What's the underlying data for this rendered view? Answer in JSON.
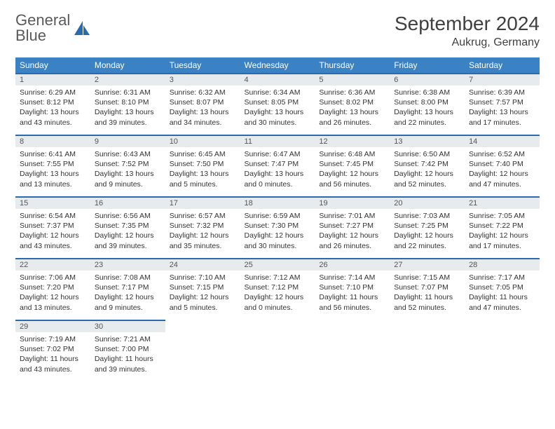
{
  "brand": {
    "line1": "General",
    "line2": "Blue"
  },
  "title": "September 2024",
  "location": "Aukrug, Germany",
  "colors": {
    "header_bg": "#3b82c4",
    "accent": "#2a6bb0",
    "daynum_bg": "#e8ebee",
    "text": "#333333",
    "page_bg": "#ffffff"
  },
  "day_headers": [
    "Sunday",
    "Monday",
    "Tuesday",
    "Wednesday",
    "Thursday",
    "Friday",
    "Saturday"
  ],
  "weeks": [
    [
      {
        "n": "1",
        "sr": "6:29 AM",
        "ss": "8:12 PM",
        "dh": "13",
        "dm": "43"
      },
      {
        "n": "2",
        "sr": "6:31 AM",
        "ss": "8:10 PM",
        "dh": "13",
        "dm": "39"
      },
      {
        "n": "3",
        "sr": "6:32 AM",
        "ss": "8:07 PM",
        "dh": "13",
        "dm": "34"
      },
      {
        "n": "4",
        "sr": "6:34 AM",
        "ss": "8:05 PM",
        "dh": "13",
        "dm": "30"
      },
      {
        "n": "5",
        "sr": "6:36 AM",
        "ss": "8:02 PM",
        "dh": "13",
        "dm": "26"
      },
      {
        "n": "6",
        "sr": "6:38 AM",
        "ss": "8:00 PM",
        "dh": "13",
        "dm": "22"
      },
      {
        "n": "7",
        "sr": "6:39 AM",
        "ss": "7:57 PM",
        "dh": "13",
        "dm": "17"
      }
    ],
    [
      {
        "n": "8",
        "sr": "6:41 AM",
        "ss": "7:55 PM",
        "dh": "13",
        "dm": "13"
      },
      {
        "n": "9",
        "sr": "6:43 AM",
        "ss": "7:52 PM",
        "dh": "13",
        "dm": "9"
      },
      {
        "n": "10",
        "sr": "6:45 AM",
        "ss": "7:50 PM",
        "dh": "13",
        "dm": "5"
      },
      {
        "n": "11",
        "sr": "6:47 AM",
        "ss": "7:47 PM",
        "dh": "13",
        "dm": "0"
      },
      {
        "n": "12",
        "sr": "6:48 AM",
        "ss": "7:45 PM",
        "dh": "12",
        "dm": "56"
      },
      {
        "n": "13",
        "sr": "6:50 AM",
        "ss": "7:42 PM",
        "dh": "12",
        "dm": "52"
      },
      {
        "n": "14",
        "sr": "6:52 AM",
        "ss": "7:40 PM",
        "dh": "12",
        "dm": "47"
      }
    ],
    [
      {
        "n": "15",
        "sr": "6:54 AM",
        "ss": "7:37 PM",
        "dh": "12",
        "dm": "43"
      },
      {
        "n": "16",
        "sr": "6:56 AM",
        "ss": "7:35 PM",
        "dh": "12",
        "dm": "39"
      },
      {
        "n": "17",
        "sr": "6:57 AM",
        "ss": "7:32 PM",
        "dh": "12",
        "dm": "35"
      },
      {
        "n": "18",
        "sr": "6:59 AM",
        "ss": "7:30 PM",
        "dh": "12",
        "dm": "30"
      },
      {
        "n": "19",
        "sr": "7:01 AM",
        "ss": "7:27 PM",
        "dh": "12",
        "dm": "26"
      },
      {
        "n": "20",
        "sr": "7:03 AM",
        "ss": "7:25 PM",
        "dh": "12",
        "dm": "22"
      },
      {
        "n": "21",
        "sr": "7:05 AM",
        "ss": "7:22 PM",
        "dh": "12",
        "dm": "17"
      }
    ],
    [
      {
        "n": "22",
        "sr": "7:06 AM",
        "ss": "7:20 PM",
        "dh": "12",
        "dm": "13"
      },
      {
        "n": "23",
        "sr": "7:08 AM",
        "ss": "7:17 PM",
        "dh": "12",
        "dm": "9"
      },
      {
        "n": "24",
        "sr": "7:10 AM",
        "ss": "7:15 PM",
        "dh": "12",
        "dm": "5"
      },
      {
        "n": "25",
        "sr": "7:12 AM",
        "ss": "7:12 PM",
        "dh": "12",
        "dm": "0"
      },
      {
        "n": "26",
        "sr": "7:14 AM",
        "ss": "7:10 PM",
        "dh": "11",
        "dm": "56"
      },
      {
        "n": "27",
        "sr": "7:15 AM",
        "ss": "7:07 PM",
        "dh": "11",
        "dm": "52"
      },
      {
        "n": "28",
        "sr": "7:17 AM",
        "ss": "7:05 PM",
        "dh": "11",
        "dm": "47"
      }
    ],
    [
      {
        "n": "29",
        "sr": "7:19 AM",
        "ss": "7:02 PM",
        "dh": "11",
        "dm": "43"
      },
      {
        "n": "30",
        "sr": "7:21 AM",
        "ss": "7:00 PM",
        "dh": "11",
        "dm": "39"
      },
      null,
      null,
      null,
      null,
      null
    ]
  ]
}
